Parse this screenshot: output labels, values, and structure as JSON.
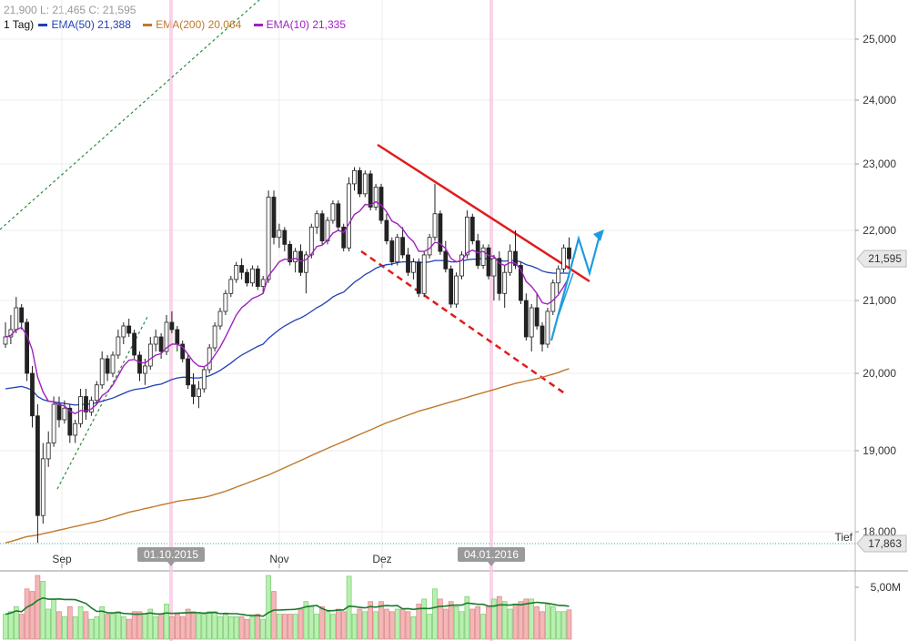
{
  "header": {
    "line1": "21,900  L: 21,465  C: 21,595",
    "interval": "1 Tag)",
    "legend": [
      {
        "label": "EMA(50)",
        "value": "21,388",
        "color": "#1f3fb5"
      },
      {
        "label": "EMA(200)",
        "value": "20,064",
        "color": "#c0782a"
      },
      {
        "label": "EMA(10)",
        "value": "21,335",
        "color": "#a020c0"
      }
    ]
  },
  "chart_data": {
    "type": "candlestick",
    "y_axis": {
      "ticks": [
        "25,000",
        "24,000",
        "23,000",
        "22,000",
        "21,000",
        "20,000",
        "19,000",
        "18,000"
      ],
      "tick_values": [
        25000,
        24000,
        23000,
        22000,
        21000,
        20000,
        19000,
        18000
      ],
      "side": "right"
    },
    "x_axis": {
      "month_labels": [
        "Sep",
        "Nov",
        "Dez"
      ],
      "date_markers": [
        "01.10.2015",
        "04.01.2016"
      ]
    },
    "last_price_label": "21,595",
    "low_label": {
      "text": "Tief",
      "value": "17,863"
    },
    "ohlc": [
      [
        20400,
        20700,
        20350,
        20500
      ],
      [
        20500,
        20800,
        20400,
        20600
      ],
      [
        20600,
        21050,
        20550,
        20900
      ],
      [
        20900,
        20950,
        20600,
        20700
      ],
      [
        20700,
        20750,
        19900,
        20000
      ],
      [
        20000,
        20100,
        19300,
        19450
      ],
      [
        19450,
        19600,
        17863,
        18200
      ],
      [
        18200,
        19100,
        18100,
        18900
      ],
      [
        18900,
        19250,
        18800,
        19100
      ],
      [
        19100,
        19700,
        19050,
        19600
      ],
      [
        19600,
        19700,
        19300,
        19400
      ],
      [
        19400,
        19650,
        19350,
        19550
      ],
      [
        19550,
        19600,
        19100,
        19200
      ],
      [
        19200,
        19400,
        19100,
        19350
      ],
      [
        19350,
        19800,
        19300,
        19700
      ],
      [
        19700,
        19800,
        19400,
        19500
      ],
      [
        19500,
        19700,
        19450,
        19650
      ],
      [
        19650,
        19900,
        19600,
        19850
      ],
      [
        19850,
        20300,
        19800,
        20200
      ],
      [
        20200,
        20250,
        19900,
        20000
      ],
      [
        20000,
        20300,
        19950,
        20250
      ],
      [
        20250,
        20600,
        20200,
        20500
      ],
      [
        20500,
        20700,
        20400,
        20650
      ],
      [
        20650,
        20750,
        20500,
        20550
      ],
      [
        20550,
        20600,
        20200,
        20250
      ],
      [
        20250,
        20300,
        19900,
        20000
      ],
      [
        20000,
        20200,
        19850,
        20100
      ],
      [
        20100,
        20500,
        20050,
        20400
      ],
      [
        20400,
        20600,
        20300,
        20500
      ],
      [
        20500,
        20550,
        20200,
        20300
      ],
      [
        20300,
        20800,
        20250,
        20700
      ],
      [
        20700,
        20850,
        20550,
        20600
      ],
      [
        20600,
        20650,
        20300,
        20400
      ],
      [
        20400,
        20450,
        20150,
        20200
      ],
      [
        20200,
        20250,
        19800,
        19850
      ],
      [
        19850,
        20000,
        19600,
        19700
      ],
      [
        19700,
        19900,
        19550,
        19800
      ],
      [
        19800,
        20100,
        19750,
        20050
      ],
      [
        20050,
        20400,
        20000,
        20350
      ],
      [
        20350,
        20700,
        20300,
        20650
      ],
      [
        20650,
        20900,
        20600,
        20850
      ],
      [
        20850,
        21150,
        20800,
        21100
      ],
      [
        21100,
        21350,
        21050,
        21300
      ],
      [
        21300,
        21550,
        21250,
        21500
      ],
      [
        21500,
        21600,
        21300,
        21400
      ],
      [
        21400,
        21450,
        21200,
        21250
      ],
      [
        21250,
        21500,
        21200,
        21450
      ],
      [
        21450,
        21500,
        21150,
        21200
      ],
      [
        21200,
        21350,
        21100,
        21300
      ],
      [
        21300,
        22600,
        21250,
        22500
      ],
      [
        22500,
        22600,
        21800,
        21900
      ],
      [
        21900,
        22100,
        21750,
        22000
      ],
      [
        22000,
        22050,
        21700,
        21800
      ],
      [
        21800,
        21850,
        21500,
        21550
      ],
      [
        21550,
        21750,
        21400,
        21700
      ],
      [
        21700,
        21800,
        21350,
        21400
      ],
      [
        21400,
        21700,
        21100,
        21650
      ],
      [
        21650,
        22100,
        21600,
        22050
      ],
      [
        22050,
        22300,
        21950,
        22250
      ],
      [
        22250,
        22300,
        21800,
        21850
      ],
      [
        21850,
        22200,
        21800,
        22150
      ],
      [
        22150,
        22450,
        22100,
        22400
      ],
      [
        22400,
        22450,
        22000,
        22050
      ],
      [
        22050,
        22100,
        21700,
        21750
      ],
      [
        21750,
        22800,
        21700,
        22700
      ],
      [
        22700,
        22950,
        22600,
        22900
      ],
      [
        22900,
        22950,
        22500,
        22550
      ],
      [
        22550,
        22900,
        22500,
        22850
      ],
      [
        22850,
        22900,
        22300,
        22350
      ],
      [
        22350,
        22700,
        22300,
        22650
      ],
      [
        22650,
        22700,
        22100,
        22150
      ],
      [
        22150,
        22250,
        21800,
        21850
      ],
      [
        21850,
        21900,
        21500,
        21550
      ],
      [
        21550,
        21950,
        21500,
        21900
      ],
      [
        21900,
        22050,
        21600,
        21650
      ],
      [
        21650,
        21750,
        21350,
        21400
      ],
      [
        21400,
        21600,
        21300,
        21550
      ],
      [
        21550,
        21600,
        21050,
        21100
      ],
      [
        21100,
        21700,
        21050,
        21650
      ],
      [
        21650,
        21950,
        21600,
        21900
      ],
      [
        21900,
        22700,
        21850,
        22250
      ],
      [
        22250,
        22300,
        21650,
        21700
      ],
      [
        21700,
        21850,
        21400,
        21450
      ],
      [
        21450,
        21500,
        20900,
        20950
      ],
      [
        20950,
        21400,
        20900,
        21350
      ],
      [
        21350,
        21700,
        21300,
        21650
      ],
      [
        21650,
        22300,
        21600,
        22200
      ],
      [
        22200,
        22250,
        21800,
        21850
      ],
      [
        21850,
        21950,
        21450,
        21500
      ],
      [
        21500,
        21800,
        21450,
        21750
      ],
      [
        21750,
        21800,
        21300,
        21350
      ],
      [
        21350,
        21650,
        21000,
        21600
      ],
      [
        21600,
        21700,
        21000,
        21100
      ],
      [
        21100,
        21500,
        20900,
        21400
      ],
      [
        21400,
        21800,
        21350,
        21700
      ],
      [
        21700,
        22000,
        21450,
        21500
      ],
      [
        21500,
        21550,
        20950,
        21000
      ],
      [
        21000,
        21100,
        20450,
        20500
      ],
      [
        20500,
        20950,
        20300,
        20900
      ],
      [
        20900,
        21100,
        20600,
        20650
      ],
      [
        20650,
        20700,
        20300,
        20400
      ],
      [
        20400,
        20900,
        20350,
        20850
      ],
      [
        20850,
        21300,
        20800,
        21250
      ],
      [
        21250,
        21500,
        21100,
        21450
      ],
      [
        21450,
        21800,
        21400,
        21750
      ],
      [
        21750,
        21900,
        21465,
        21595
      ]
    ],
    "ema10": [
      20500,
      20520,
      20600,
      20630,
      20520,
      20320,
      19950,
      19760,
      19640,
      19630,
      19590,
      19580,
      19510,
      19480,
      19520,
      19510,
      19540,
      19600,
      19710,
      19760,
      19850,
      19970,
      20100,
      20180,
      20190,
      20150,
      20140,
      20200,
      20250,
      20270,
      20350,
      20400,
      20400,
      20360,
      20260,
      20160,
      20100,
      20090,
      20140,
      20250,
      20360,
      20500,
      20650,
      20800,
      20900,
      20960,
      21030,
      21060,
      21100,
      21350,
      21450,
      21550,
      21590,
      21580,
      21600,
      21560,
      21580,
      21660,
      21770,
      21790,
      21860,
      21960,
      22000,
      21970,
      22100,
      22240,
      22290,
      22390,
      22380,
      22430,
      22380,
      22280,
      22140,
      22100,
      22020,
      21910,
      21840,
      21700,
      21700,
      21740,
      21830,
      21810,
      21740,
      21600,
      21550,
      21570,
      21680,
      21720,
      21680,
      21700,
      21640,
      21630,
      21530,
      21500,
      21540,
      21530,
      21440,
      21270,
      21200,
      21100,
      20970,
      20950,
      21000,
      21080,
      21200,
      21335
    ],
    "ema50": [
      19800,
      19810,
      19820,
      19830,
      19810,
      19780,
      19700,
      19660,
      19640,
      19630,
      19620,
      19610,
      19600,
      19590,
      19595,
      19600,
      19605,
      19620,
      19640,
      19660,
      19680,
      19710,
      19740,
      19770,
      19790,
      19800,
      19810,
      19830,
      19850,
      19860,
      19890,
      19920,
      19940,
      19950,
      19950,
      19940,
      19940,
      19950,
      19970,
      20000,
      20040,
      20090,
      20140,
      20200,
      20250,
      20290,
      20330,
      20370,
      20400,
      20480,
      20540,
      20600,
      20650,
      20690,
      20730,
      20760,
      20800,
      20850,
      20900,
      20940,
      20990,
      21050,
      21090,
      21120,
      21190,
      21260,
      21310,
      21370,
      21410,
      21460,
      21490,
      21510,
      21520,
      21540,
      21550,
      21550,
      21550,
      21540,
      21540,
      21550,
      21570,
      21570,
      21570,
      21550,
      21550,
      21560,
      21580,
      21590,
      21590,
      21600,
      21590,
      21590,
      21570,
      21560,
      21570,
      21570,
      21550,
      21510,
      21490,
      21460,
      21420,
      21400,
      21390,
      21390,
      21390,
      21388
    ],
    "ema200": [
      17863,
      17880,
      17900,
      17920,
      17940,
      17950,
      17960,
      17975,
      17990,
      18005,
      18020,
      18035,
      18050,
      18065,
      18080,
      18095,
      18110,
      18125,
      18140,
      18160,
      18180,
      18200,
      18220,
      18240,
      18255,
      18270,
      18285,
      18300,
      18315,
      18330,
      18345,
      18360,
      18375,
      18385,
      18395,
      18405,
      18415,
      18425,
      18440,
      18460,
      18480,
      18500,
      18525,
      18550,
      18575,
      18600,
      18625,
      18650,
      18675,
      18700,
      18730,
      18760,
      18790,
      18820,
      18850,
      18880,
      18910,
      18940,
      18970,
      19000,
      19030,
      19060,
      19090,
      19120,
      19150,
      19180,
      19210,
      19240,
      19270,
      19300,
      19330,
      19360,
      19385,
      19410,
      19435,
      19460,
      19485,
      19510,
      19530,
      19550,
      19570,
      19590,
      19610,
      19630,
      19650,
      19670,
      19690,
      19710,
      19730,
      19750,
      19770,
      19790,
      19810,
      19830,
      19850,
      19870,
      19885,
      19900,
      19915,
      19930,
      19950,
      19970,
      19990,
      20010,
      20040,
      20064
    ],
    "volume_axis": {
      "ticks": [
        "5,00M"
      ]
    }
  }
}
